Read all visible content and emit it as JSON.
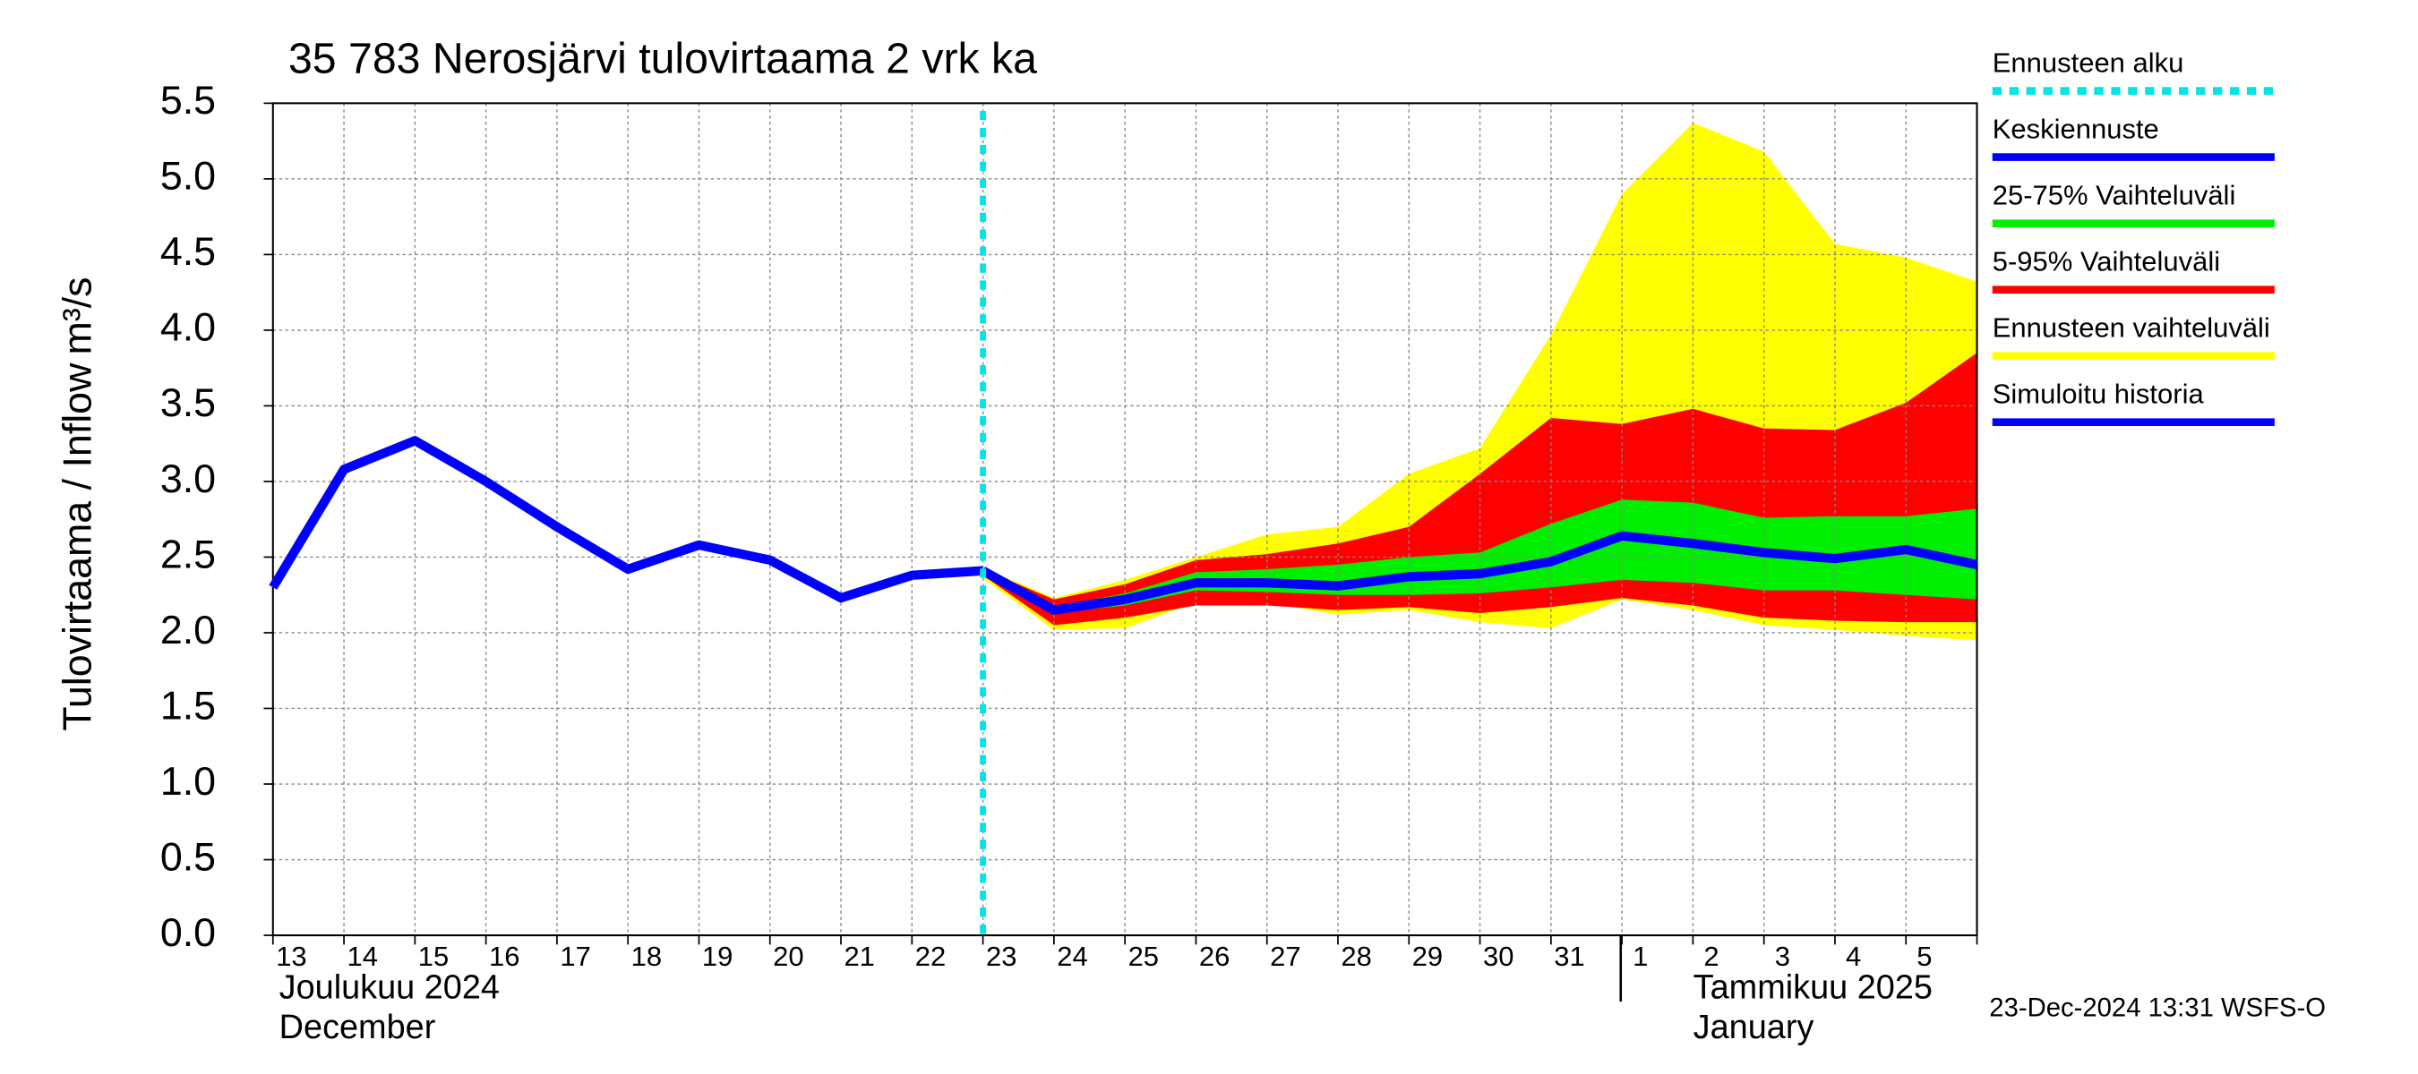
{
  "chart_data": {
    "type": "line",
    "title": "35 783 Nerosjärvi tulovirtaama 2 vrk ka",
    "y_label": "Tulovirtaama / Inflow",
    "y_unit": "m³/s",
    "categories": [
      "13",
      "14",
      "15",
      "16",
      "17",
      "18",
      "19",
      "20",
      "21",
      "22",
      "23",
      "24",
      "25",
      "26",
      "27",
      "28",
      "29",
      "30",
      "31",
      "1",
      "2",
      "3",
      "4",
      "5",
      null
    ],
    "month_labels": [
      "Joulukuu  2024",
      "December",
      "Tammikuu  2025",
      "January"
    ],
    "timestamp": "23-Dec-2024 13:31 WSFS-O",
    "forecast_start": {
      "name": "Ennusteen alku",
      "color": "#00e5e5",
      "index": 10
    },
    "bands": [
      {
        "name": "Ennusteen vaihteluväli",
        "color": "#ffff00",
        "lower": [
          null,
          null,
          null,
          null,
          null,
          null,
          null,
          null,
          null,
          null,
          2.36,
          2.02,
          2.03,
          2.2,
          2.2,
          2.12,
          2.15,
          2.07,
          2.03,
          2.22,
          2.15,
          2.05,
          2.02,
          1.98,
          1.95
        ],
        "upper": [
          null,
          null,
          null,
          null,
          null,
          null,
          null,
          null,
          null,
          null,
          2.43,
          2.23,
          2.35,
          2.5,
          2.65,
          2.7,
          3.05,
          3.22,
          3.97,
          4.9,
          5.37,
          5.18,
          4.57,
          4.48,
          4.32
        ]
      },
      {
        "name": "5-95% Vaihteluväli",
        "color": "#ff0000",
        "lower": [
          null,
          null,
          null,
          null,
          null,
          null,
          null,
          null,
          null,
          null,
          2.38,
          2.05,
          2.1,
          2.18,
          2.18,
          2.15,
          2.17,
          2.13,
          2.17,
          2.23,
          2.18,
          2.1,
          2.08,
          2.07,
          2.07
        ],
        "upper": [
          null,
          null,
          null,
          null,
          null,
          null,
          null,
          null,
          null,
          null,
          2.42,
          2.22,
          2.32,
          2.48,
          2.52,
          2.59,
          2.7,
          3.05,
          3.42,
          3.38,
          3.48,
          3.35,
          3.34,
          3.52,
          3.85
        ]
      },
      {
        "name": "25-75% Vaihteluväli",
        "color": "#00ee00",
        "lower": [
          null,
          null,
          null,
          null,
          null,
          null,
          null,
          null,
          null,
          null,
          2.41,
          2.13,
          2.18,
          2.28,
          2.27,
          2.25,
          2.25,
          2.26,
          2.3,
          2.35,
          2.33,
          2.28,
          2.28,
          2.25,
          2.22
        ],
        "upper": [
          null,
          null,
          null,
          null,
          null,
          null,
          null,
          null,
          null,
          null,
          2.41,
          2.17,
          2.26,
          2.4,
          2.42,
          2.45,
          2.5,
          2.53,
          2.72,
          2.88,
          2.86,
          2.76,
          2.77,
          2.77,
          2.82
        ]
      }
    ],
    "series": [
      {
        "name": "Simuloitu historia",
        "color": "#0000ff",
        "values": [
          2.3,
          3.08,
          3.27,
          3.0,
          2.7,
          2.42,
          2.58,
          2.48,
          2.23,
          2.38,
          2.41,
          null,
          null,
          null,
          null,
          null,
          null,
          null,
          null,
          null,
          null,
          null,
          null,
          null,
          null
        ]
      },
      {
        "name": "Keskiennuste",
        "color": "#0000ff",
        "values": [
          null,
          null,
          null,
          null,
          null,
          null,
          null,
          null,
          null,
          null,
          2.41,
          2.15,
          2.22,
          2.33,
          2.33,
          2.31,
          2.37,
          2.39,
          2.47,
          2.64,
          2.59,
          2.53,
          2.49,
          2.55,
          2.45
        ]
      }
    ],
    "ylim": [
      0,
      5.5
    ],
    "yticks": [
      {
        "value": 0,
        "label": "0.0"
      },
      0.5,
      {
        "value": 1,
        "label": "1.0"
      },
      1.5,
      {
        "value": 2,
        "label": "2.0"
      },
      2.5,
      {
        "value": 3,
        "label": "3.0"
      },
      3.5,
      {
        "value": 4,
        "label": "4.0"
      },
      4.5,
      {
        "value": 5,
        "label": "5.0"
      },
      5.5
    ],
    "grid": true
  }
}
